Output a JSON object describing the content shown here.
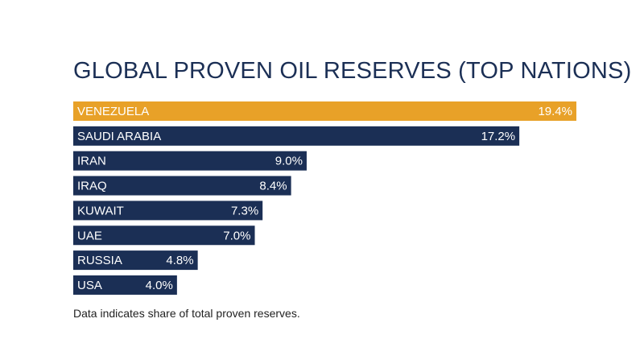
{
  "chart_data": {
    "type": "bar",
    "orientation": "horizontal",
    "title": "GLOBAL PROVEN OIL RESERVES (TOP NATIONS)",
    "categories": [
      "VENEZUELA",
      "SAUDI ARABIA",
      "IRAN",
      "IRAQ",
      "KUWAIT",
      "UAE",
      "RUSSIA",
      "USA"
    ],
    "values": [
      19.4,
      17.2,
      9.0,
      8.4,
      7.3,
      7.0,
      4.8,
      4.0
    ],
    "value_labels": [
      "19.4%",
      "17.2%",
      "9.0%",
      "8.4%",
      "7.3%",
      "7.0%",
      "4.8%",
      "4.0%"
    ],
    "unit": "%",
    "highlight_index": 0,
    "colors": {
      "highlight": "#e8a128",
      "bar": "#1b2f55",
      "text": "#ffffff"
    },
    "grid": false,
    "legend": "none"
  },
  "footnote": "Data indicates share of total proven reserves."
}
